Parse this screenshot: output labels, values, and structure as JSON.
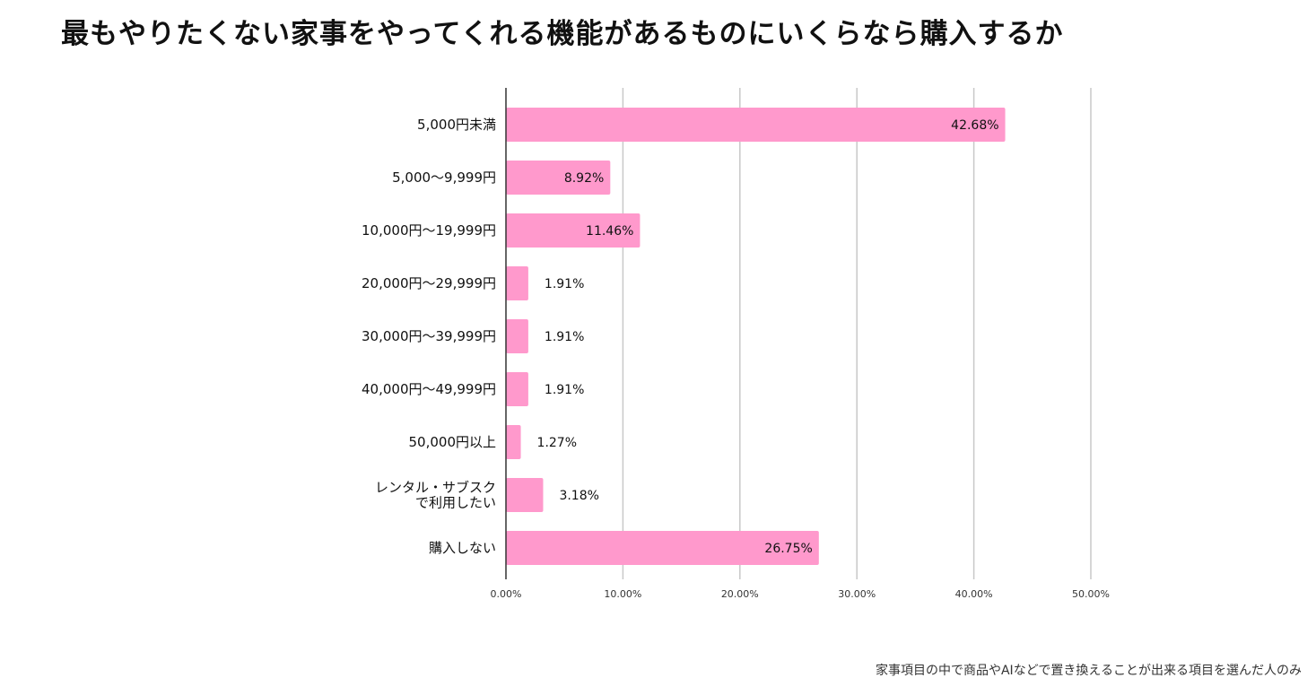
{
  "chart_data": {
    "type": "bar",
    "orientation": "horizontal",
    "title": "最もやりたくない家事をやってくれる機能があるものにいくらなら購入するか",
    "categories": [
      "5,000円未満",
      "5,000〜9,999円",
      "10,000円〜19,999円",
      "20,000円〜29,999円",
      "30,000円〜39,999円",
      "40,000円〜49,999円",
      "50,000円以上",
      "レンタル・サブスク\nで利用したい",
      "購入しない"
    ],
    "values": [
      42.68,
      8.92,
      11.46,
      1.91,
      1.91,
      1.91,
      1.27,
      3.18,
      26.75
    ],
    "value_labels": [
      "42.68%",
      "8.92%",
      "11.46%",
      "1.91%",
      "1.91%",
      "1.91%",
      "1.27%",
      "3.18%",
      "26.75%"
    ],
    "xlim": [
      0,
      50
    ],
    "xticks": [
      "0.00%",
      "10.00%",
      "20.00%",
      "30.00%",
      "40.00%",
      "50.00%"
    ],
    "grid": true,
    "bar_color": "#FF99CC",
    "footnote": "家事項目の中で商品やAIなどで置き換えることが出来る項目を選んだ人のみ"
  }
}
